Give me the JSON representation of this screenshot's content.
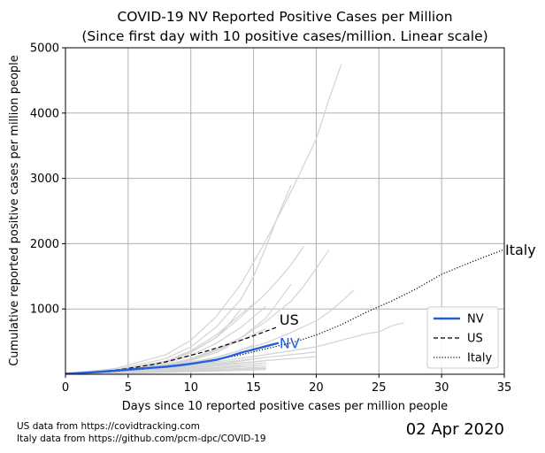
{
  "chart_data": {
    "type": "line",
    "title": "COVID-19 NV Reported Positive Cases per Million",
    "subtitle": "(Since first day with 10 positive cases/million. Linear scale)",
    "xlabel": "Days since 10 reported positive cases per million people",
    "ylabel": "Cumulative reported positive cases per million people",
    "xlim": [
      0,
      35
    ],
    "ylim": [
      0,
      5000
    ],
    "xticks": [
      0,
      5,
      10,
      15,
      20,
      25,
      30,
      35
    ],
    "yticks": [
      1000,
      2000,
      3000,
      4000,
      5000
    ],
    "grid": true,
    "legend_position": "lower-right",
    "legend": [
      "NV",
      "US",
      "Italy"
    ],
    "highlight_series": [
      {
        "name": "NV",
        "color": "#1f5fe0",
        "style": "solid",
        "end_label": "NV",
        "x": [
          0,
          1,
          2,
          3,
          4,
          5,
          6,
          7,
          8,
          9,
          10,
          11,
          12,
          13,
          14,
          15,
          16,
          17
        ],
        "y": [
          10,
          18,
          28,
          40,
          55,
          72,
          88,
          100,
          115,
          135,
          160,
          190,
          220,
          270,
          330,
          380,
          430,
          480
        ]
      },
      {
        "name": "US",
        "color": "#000000",
        "style": "dashed",
        "end_label": "US",
        "x": [
          0,
          1,
          2,
          3,
          4,
          5,
          6,
          7,
          8,
          9,
          10,
          11,
          12,
          13,
          14,
          15,
          16,
          17
        ],
        "y": [
          12,
          20,
          30,
          45,
          65,
          90,
          120,
          150,
          190,
          240,
          290,
          340,
          400,
          460,
          520,
          590,
          660,
          730
        ]
      },
      {
        "name": "Italy",
        "color": "#000000",
        "style": "dotted",
        "end_label": "Italy",
        "x": [
          0,
          2,
          4,
          6,
          8,
          10,
          12,
          14,
          16,
          18,
          20,
          22,
          24,
          26,
          28,
          30,
          32,
          34,
          35
        ],
        "y": [
          10,
          25,
          45,
          75,
          115,
          165,
          225,
          300,
          390,
          480,
          600,
          760,
          950,
          1120,
          1310,
          1530,
          1690,
          1840,
          1910
        ]
      }
    ],
    "background_series": [
      {
        "x": [
          0,
          4,
          8,
          10,
          12,
          14,
          16,
          18,
          20,
          21,
          22
        ],
        "y": [
          10,
          90,
          300,
          520,
          880,
          1380,
          2050,
          2800,
          3600,
          4200,
          4750
        ]
      },
      {
        "x": [
          0,
          4,
          8,
          10,
          12,
          14,
          15,
          16,
          17,
          18
        ],
        "y": [
          10,
          70,
          240,
          420,
          720,
          1150,
          1500,
          1950,
          2450,
          2900
        ]
      },
      {
        "x": [
          0,
          4,
          8,
          10,
          12,
          14,
          16,
          17,
          18,
          19
        ],
        "y": [
          10,
          60,
          200,
          340,
          560,
          880,
          1240,
          1450,
          1680,
          1960
        ]
      },
      {
        "x": [
          0,
          4,
          8,
          10,
          12,
          14,
          16,
          18,
          19,
          20,
          21
        ],
        "y": [
          10,
          50,
          150,
          240,
          380,
          560,
          810,
          1120,
          1350,
          1620,
          1900
        ]
      },
      {
        "x": [
          0,
          4,
          8,
          12,
          16,
          18,
          20,
          21,
          22,
          23
        ],
        "y": [
          10,
          40,
          120,
          260,
          480,
          640,
          820,
          950,
          1110,
          1290
        ]
      },
      {
        "x": [
          0,
          4,
          8,
          10,
          12,
          14,
          16,
          17,
          18
        ],
        "y": [
          10,
          40,
          130,
          220,
          360,
          560,
          860,
          1120,
          1380
        ]
      },
      {
        "x": [
          0,
          4,
          8,
          10,
          12,
          14,
          15
        ],
        "y": [
          10,
          50,
          200,
          360,
          600,
          920,
          1080
        ]
      },
      {
        "x": [
          0,
          4,
          8,
          10,
          12,
          13,
          14
        ],
        "y": [
          10,
          50,
          190,
          330,
          560,
          760,
          1000
        ]
      },
      {
        "x": [
          0,
          4,
          8,
          10,
          12,
          14,
          16
        ],
        "y": [
          10,
          45,
          170,
          290,
          470,
          720,
          1040
        ]
      },
      {
        "x": [
          0,
          4,
          8,
          12,
          16,
          20,
          22,
          24,
          25,
          26,
          27
        ],
        "y": [
          10,
          35,
          100,
          190,
          300,
          420,
          520,
          620,
          650,
          740,
          790
        ]
      },
      {
        "x": [
          0,
          4,
          8,
          10,
          12,
          14,
          16
        ],
        "y": [
          10,
          40,
          140,
          230,
          360,
          520,
          700
        ]
      },
      {
        "x": [
          0,
          4,
          8,
          12,
          16,
          18,
          20
        ],
        "y": [
          10,
          35,
          90,
          170,
          260,
          300,
          340
        ]
      },
      {
        "x": [
          0,
          4,
          8,
          12,
          16,
          18,
          20
        ],
        "y": [
          10,
          30,
          80,
          140,
          210,
          240,
          270
        ]
      },
      {
        "x": [
          0,
          4,
          8,
          10,
          12,
          14,
          16
        ],
        "y": [
          10,
          30,
          80,
          110,
          150,
          200,
          260
        ]
      },
      {
        "x": [
          0,
          4,
          8,
          10,
          12,
          14,
          16
        ],
        "y": [
          10,
          28,
          70,
          95,
          125,
          165,
          210
        ]
      },
      {
        "x": [
          0,
          4,
          8,
          10,
          12,
          14,
          16
        ],
        "y": [
          10,
          25,
          60,
          80,
          105,
          140,
          175
        ]
      },
      {
        "x": [
          0,
          4,
          8,
          10,
          12,
          14,
          16
        ],
        "y": [
          10,
          22,
          50,
          68,
          88,
          115,
          140
        ]
      },
      {
        "x": [
          0,
          4,
          8,
          10,
          12,
          14,
          16
        ],
        "y": [
          10,
          20,
          42,
          56,
          72,
          92,
          110
        ]
      },
      {
        "x": [
          0,
          4,
          8,
          10,
          12,
          14,
          16
        ],
        "y": [
          10,
          18,
          35,
          46,
          60,
          76,
          90
        ]
      },
      {
        "x": [
          0,
          4,
          8,
          10,
          12,
          14,
          16
        ],
        "y": [
          10,
          16,
          30,
          38,
          48,
          60,
          72
        ]
      },
      {
        "x": [
          0,
          4,
          8,
          10,
          12,
          14
        ],
        "y": [
          10,
          24,
          55,
          75,
          100,
          130
        ]
      },
      {
        "x": [
          0,
          4,
          8,
          10,
          12
        ],
        "y": [
          10,
          30,
          85,
          125,
          175
        ]
      },
      {
        "x": [
          0,
          4,
          8,
          10,
          12,
          14,
          15
        ],
        "y": [
          10,
          35,
          110,
          170,
          250,
          370,
          450
        ]
      },
      {
        "x": [
          0,
          4,
          8,
          10,
          12,
          13
        ],
        "y": [
          10,
          40,
          130,
          210,
          330,
          420
        ]
      }
    ],
    "background_color": "#d3d3d3"
  },
  "footer": {
    "source_us": "US data from https://covidtracking.com",
    "source_italy": "Italy data from https://github.com/pcm-dpc/COVID-19",
    "date": "02 Apr 2020"
  }
}
